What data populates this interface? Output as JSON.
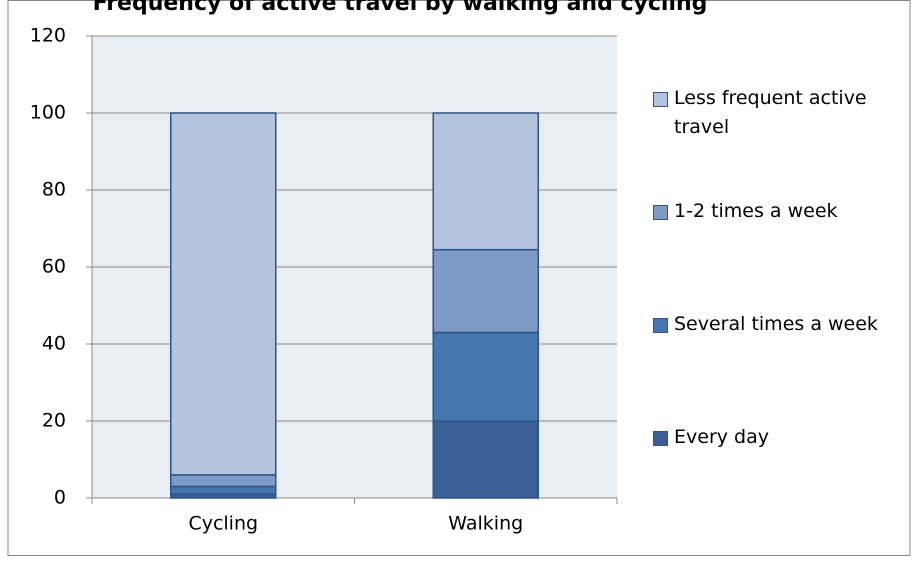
{
  "chart_data": {
    "type": "stacked-bar",
    "title": "Frequency of active travel by walking and cycling",
    "categories": [
      "Cycling",
      "Walking"
    ],
    "series": [
      {
        "name": "Every day",
        "color": "#3b5f93",
        "values": [
          1,
          20
        ]
      },
      {
        "name": "Several times a week",
        "color": "#4676b0",
        "values": [
          2,
          23
        ]
      },
      {
        "name": "1-2 times a week",
        "color": "#7e9bc8",
        "values": [
          3,
          21.5
        ]
      },
      {
        "name": "Less frequent active travel",
        "color": "#b4c3de",
        "values": [
          94,
          35.5
        ]
      }
    ],
    "ylim": [
      0,
      120
    ],
    "yticks": [
      0,
      20,
      40,
      60,
      80,
      100,
      120
    ],
    "grid": true,
    "legend": "right"
  }
}
